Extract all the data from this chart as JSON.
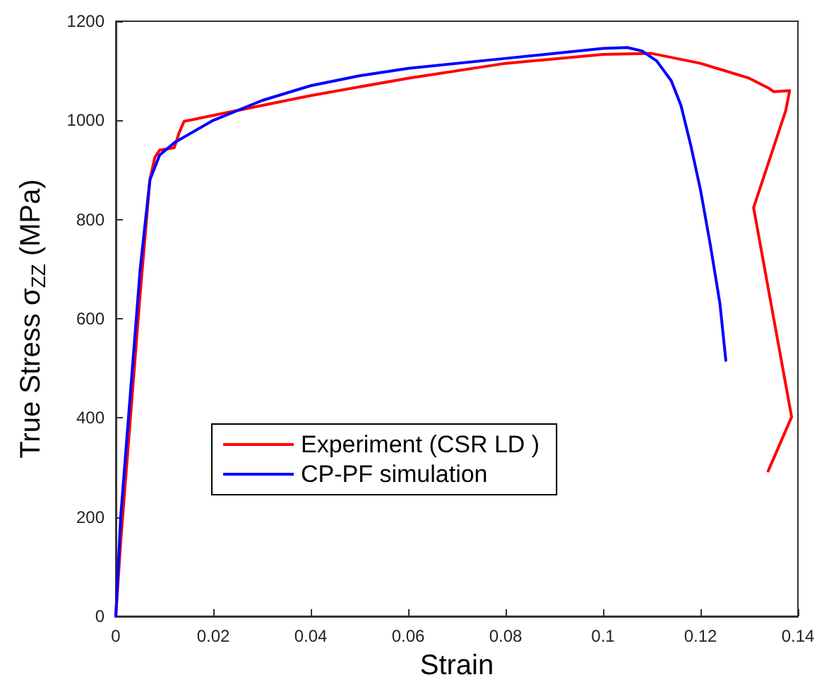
{
  "chart_data": {
    "type": "line",
    "xlabel": "Strain",
    "ylabel": "True Stress σ$_{ZZ}$ (MPa)",
    "xlim": [
      0,
      0.14
    ],
    "xticks": [
      0,
      0.02,
      0.04,
      0.06,
      0.08,
      0.1,
      0.12,
      0.14
    ],
    "ylim": [
      0,
      1200
    ],
    "yticks": [
      0,
      200,
      400,
      600,
      800,
      1000,
      1200
    ],
    "grid": false,
    "legend": "bottom",
    "marker": "none",
    "line_style": "solid",
    "series": [
      {
        "name": "Experiment (CSR LD )",
        "color": "#ff0000",
        "x": [
          0,
          0.001,
          0.003,
          0.005,
          0.007,
          0.008,
          0.009,
          0.012,
          0.013,
          0.014,
          0.02,
          0.03,
          0.04,
          0.06,
          0.08,
          0.1,
          0.11,
          0.12,
          0.13,
          0.134,
          0.135,
          0.1383,
          0.1375,
          0.1309,
          0.1387,
          0.1339
        ],
        "values": [
          0,
          150,
          400,
          650,
          880,
          925,
          940,
          945,
          975,
          998,
          1010,
          1030,
          1050,
          1085,
          1115,
          1133,
          1135,
          1115,
          1085,
          1065,
          1058,
          1060,
          1020,
          824,
          402,
          293
        ]
      },
      {
        "name": "CP-PF simulation",
        "color": "#0000ff",
        "x": [
          0,
          0.001,
          0.003,
          0.005,
          0.007,
          0.009,
          0.012,
          0.02,
          0.03,
          0.04,
          0.05,
          0.06,
          0.08,
          0.1,
          0.105,
          0.108,
          0.111,
          0.114,
          0.116,
          0.118,
          0.12,
          0.122,
          0.124,
          0.1252
        ],
        "values": [
          0,
          200,
          450,
          700,
          880,
          930,
          955,
          1000,
          1040,
          1070,
          1090,
          1105,
          1125,
          1145,
          1147,
          1140,
          1120,
          1080,
          1030,
          950,
          860,
          750,
          630,
          516
        ]
      }
    ]
  }
}
